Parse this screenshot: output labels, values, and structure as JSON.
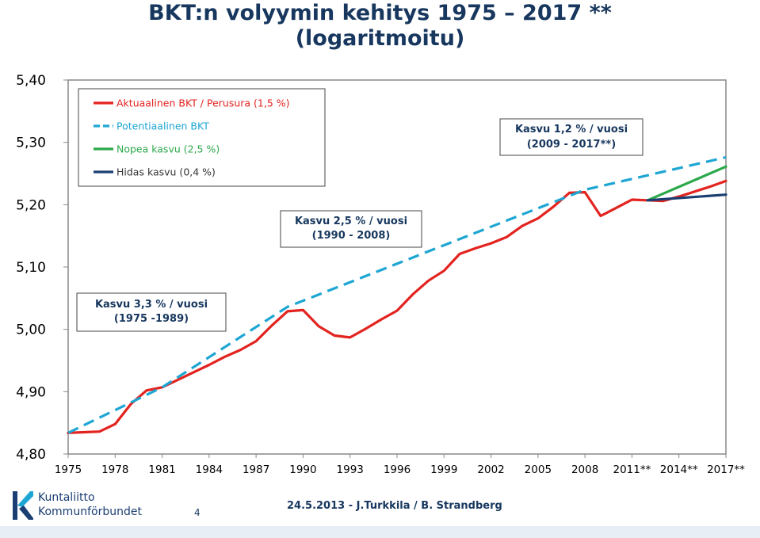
{
  "chart_data": {
    "type": "line",
    "title_line1": "BKT:n volyymin kehitys 1975 – 2017 **",
    "title_line2": "(logaritmoitu)",
    "ylim": [
      4.8,
      5.4
    ],
    "y_ticks": [
      "5,40",
      "5,30",
      "5,20",
      "5,10",
      "5,00",
      "4,90",
      "4,80"
    ],
    "y_tick_values": [
      5.4,
      5.3,
      5.2,
      5.1,
      5.0,
      4.9,
      4.8
    ],
    "x_tick_labels": [
      "1975",
      "1978",
      "1981",
      "1984",
      "1987",
      "1990",
      "1993",
      "1996",
      "1999",
      "2002",
      "2005",
      "2008",
      "2011**",
      "2014**",
      "2017**"
    ],
    "x_tick_values": [
      1975,
      1978,
      1981,
      1984,
      1987,
      1990,
      1993,
      1996,
      1999,
      2002,
      2005,
      2008,
      2011,
      2014,
      2017
    ],
    "xlim": [
      1975,
      2017
    ],
    "series": [
      {
        "name": "Aktuaalinen BKT / Perusura (1,5 %)",
        "color": "#E3231F",
        "dash": "solid",
        "x": [
          1975,
          1976,
          1977,
          1978,
          1979,
          1980,
          1981,
          1982,
          1983,
          1984,
          1985,
          1986,
          1987,
          1988,
          1989,
          1990,
          1991,
          1992,
          1993,
          1994,
          1995,
          1996,
          1997,
          1998,
          1999,
          2000,
          2001,
          2002,
          2003,
          2004,
          2005,
          2006,
          2007,
          2008,
          2009,
          2010,
          2011,
          2012,
          2013,
          2014,
          2015,
          2016,
          2017
        ],
        "values": [
          4.834,
          4.835,
          4.836,
          4.848,
          4.88,
          4.902,
          4.907,
          4.919,
          4.931,
          4.943,
          4.956,
          4.967,
          4.981,
          5.006,
          5.029,
          5.031,
          5.005,
          4.99,
          4.987,
          5.001,
          5.016,
          5.03,
          5.056,
          5.078,
          5.094,
          5.121,
          5.13,
          5.138,
          5.148,
          5.166,
          5.178,
          5.197,
          5.219,
          5.22,
          5.182,
          5.195,
          5.208,
          5.207,
          5.206,
          5.213,
          5.221,
          5.229,
          5.238
        ]
      },
      {
        "name": "Potentiaalinen BKT",
        "color": "#1EA6D3",
        "dash": "dashed",
        "x": [
          1975,
          1981,
          1989,
          2008,
          2017
        ],
        "values": [
          4.834,
          4.907,
          5.036,
          5.224,
          5.276
        ]
      },
      {
        "name": "Nopea kasvu (2,5 %)",
        "color": "#2BA84A",
        "dash": "solid",
        "x": [
          2012,
          2017
        ],
        "values": [
          5.207,
          5.261
        ]
      },
      {
        "name": "Hidas kasvu (0,4 %)",
        "color": "#1B3F73",
        "dash": "solid",
        "x": [
          2012,
          2017
        ],
        "values": [
          5.207,
          5.216
        ]
      }
    ],
    "annotations": [
      {
        "id": "anno-1",
        "line1": "Kasvu 1,2 % / vuosi",
        "line2": "(2009 - 2017**)"
      },
      {
        "id": "anno-2",
        "line1": "Kasvu 2,5 % / vuosi",
        "line2": "(1990 - 2008)"
      },
      {
        "id": "anno-3",
        "line1": "Kasvu 3,3 % / vuosi",
        "line2": "(1975 -1989)"
      }
    ],
    "legend_placement": "top-left",
    "grid": false
  },
  "footer": {
    "logo_line1": "Kuntaliitto",
    "logo_line2": "Kommunförbundet",
    "page_number": "4",
    "date_author": "24.5.2013 - J.Turkkila / B. Strandberg"
  }
}
